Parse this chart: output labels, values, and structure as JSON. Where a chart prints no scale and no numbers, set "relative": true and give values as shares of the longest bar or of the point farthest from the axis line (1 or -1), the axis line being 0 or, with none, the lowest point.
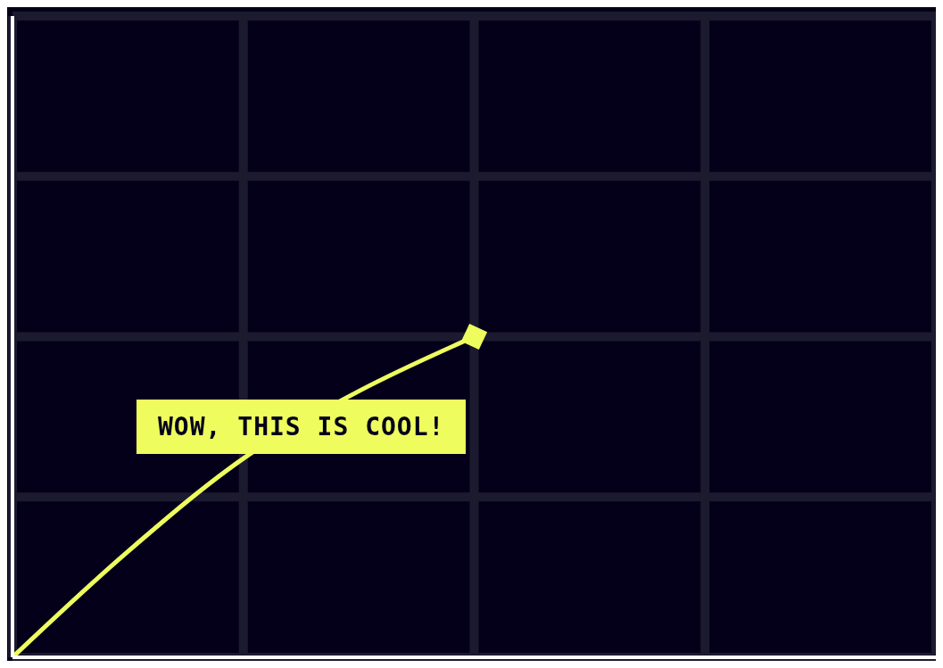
{
  "chart_data": {
    "type": "line",
    "relative": true,
    "categories": [
      null,
      null,
      null,
      null,
      null,
      null,
      null,
      null,
      null
    ],
    "series": [
      {
        "color": "#eefc5e",
        "values": [
          0,
          0.33,
          0.62,
          0.83,
          1,
          null,
          null,
          null,
          null
        ]
      }
    ],
    "grid": true,
    "annotations": [
      "WOW, THIS IS COOL!"
    ]
  }
}
